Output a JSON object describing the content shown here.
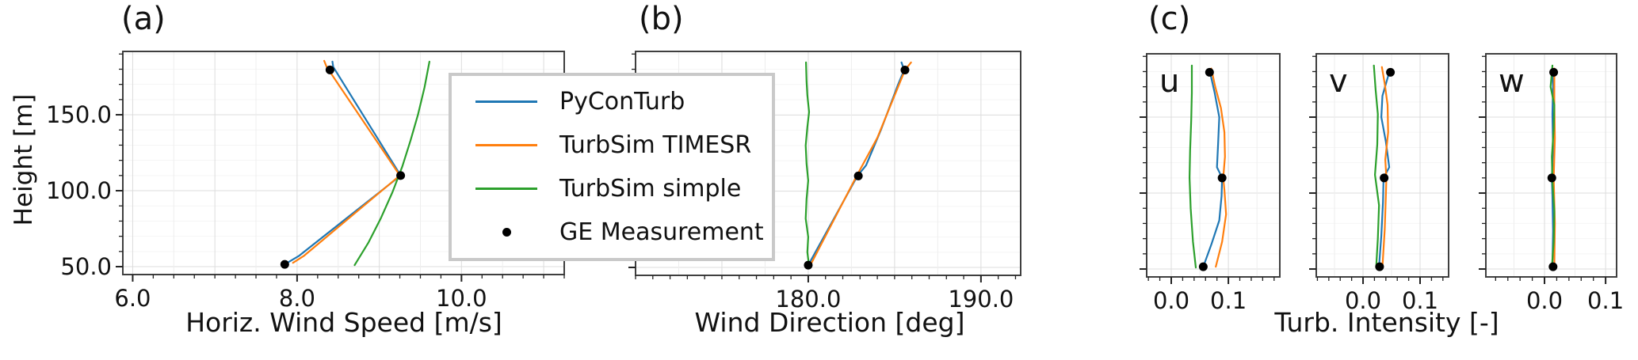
{
  "chart_data": [
    {
      "id": "a",
      "type": "line",
      "title": "(a)",
      "xlabel": "Horiz. Wind Speed [m/s]",
      "ylabel": "Height [m]",
      "xlim": [
        5.88,
        11.25
      ],
      "ylim": [
        44.8,
        191.7
      ],
      "xticks": [
        6.0,
        8.0,
        10.0
      ],
      "xtick_labels": [
        "6.0",
        "8.0",
        "10.0"
      ],
      "yticks": [
        50,
        100,
        150
      ],
      "ytick_labels": [
        "50.0",
        "100.0",
        "150.0"
      ],
      "x_minor_step": 0.25,
      "x_grid_step": 0.5,
      "x_grid_major_step": 1.0,
      "y_minor_step": 10,
      "grid": true,
      "series": [
        {
          "name": "PyConTurb",
          "color": "#1f77b4",
          "points": [
            [
              7.85,
              51.5
            ],
            [
              8.02,
              57
            ],
            [
              9.26,
              110
            ],
            [
              8.44,
              181.5
            ],
            [
              8.43,
              185
            ]
          ]
        },
        {
          "name": "TurbSim TIMESR",
          "color": "#ff7f0e",
          "points": [
            [
              7.95,
              52.5
            ],
            [
              8.08,
              57
            ],
            [
              9.25,
              110
            ],
            [
              8.36,
              181.5
            ],
            [
              8.33,
              185.5
            ]
          ]
        },
        {
          "name": "TurbSim simple",
          "color": "#2ca02c",
          "points": [
            [
              8.7,
              51
            ],
            [
              8.87,
              66
            ],
            [
              9.02,
              82
            ],
            [
              9.16,
              99
            ],
            [
              9.28,
              116
            ],
            [
              9.38,
              133
            ],
            [
              9.47,
              150
            ],
            [
              9.55,
              168
            ],
            [
              9.61,
              185
            ]
          ]
        },
        {
          "name": "GE Measurement",
          "color": "#000000",
          "marker": "dot",
          "points": [
            [
              7.85,
              51.5
            ],
            [
              9.26,
              110
            ],
            [
              8.4,
              179.5
            ]
          ]
        }
      ]
    },
    {
      "id": "b",
      "type": "line",
      "title": "(b)",
      "xlabel": "Wind Direction [deg]",
      "xlim": [
        170.0,
        192.3
      ],
      "ylim": [
        44.8,
        191.7
      ],
      "xticks": [
        180.0,
        190.0
      ],
      "xtick_labels": [
        "180.0",
        "190.0"
      ],
      "x_minor_step": 1.0,
      "x_grid_step": 2.5,
      "x_grid_major_step": 5.0,
      "y_minor_step": 10,
      "grid": true,
      "series": [
        {
          "name": "PyConTurb",
          "color": "#1f77b4",
          "points": [
            [
              180.0,
              51.5
            ],
            [
              181.0,
              72
            ],
            [
              182.85,
              110
            ],
            [
              183.35,
              117
            ],
            [
              184.2,
              140
            ],
            [
              185.2,
              170
            ],
            [
              185.55,
              179.5
            ],
            [
              185.4,
              184.5
            ]
          ]
        },
        {
          "name": "TurbSim TIMESR",
          "color": "#ff7f0e",
          "points": [
            [
              180.12,
              51.5
            ],
            [
              182.8,
              110
            ],
            [
              184.0,
              135
            ],
            [
              185.6,
              179.5
            ],
            [
              185.95,
              184.5
            ]
          ]
        },
        {
          "name": "TurbSim simple",
          "color": "#2ca02c",
          "points": [
            [
              180.05,
              51
            ],
            [
              179.95,
              60
            ],
            [
              180.0,
              70
            ],
            [
              179.85,
              82
            ],
            [
              179.9,
              95
            ],
            [
              180.0,
              107
            ],
            [
              179.9,
              118
            ],
            [
              179.85,
              130
            ],
            [
              179.95,
              142
            ],
            [
              180.05,
              152
            ],
            [
              179.95,
              163
            ],
            [
              179.9,
              172
            ],
            [
              179.87,
              184.5
            ]
          ]
        },
        {
          "name": "GE Measurement",
          "color": "#000000",
          "marker": "dot",
          "points": [
            [
              180.0,
              51.5
            ],
            [
              182.9,
              110
            ],
            [
              185.6,
              179.5
            ]
          ]
        }
      ]
    },
    {
      "id": "c",
      "type": "line",
      "title": "(c)",
      "xlabel": "Turb. Intensity [-]",
      "ylim": [
        44.8,
        191.7
      ],
      "yticks": [
        50,
        100,
        150
      ],
      "y_minor_step": 10,
      "grid": true,
      "subpanels": [
        {
          "label": "u",
          "xlim": [
            -0.043,
            0.19
          ],
          "xticks": [
            0.0,
            0.1
          ],
          "xtick_labels": [
            "0.0",
            "0.1"
          ],
          "x_minor_step": 0.02,
          "x_grid_step": 0.05,
          "x_grid_major_step": 0.1,
          "series": [
            {
              "name": "PyConTurb",
              "color": "#1f77b4",
              "points": [
                [
                  0.056,
                  51.5
                ],
                [
                  0.07,
                  66
                ],
                [
                  0.084,
                  82
                ],
                [
                  0.088,
                  98
                ],
                [
                  0.089,
                  110
                ],
                [
                  0.08,
                  117
                ],
                [
                  0.082,
                  132
                ],
                [
                  0.084,
                  150
                ],
                [
                  0.076,
                  166
                ],
                [
                  0.067,
                  181
                ]
              ]
            },
            {
              "name": "TurbSim TIMESR",
              "color": "#ff7f0e",
              "points": [
                [
                  0.078,
                  51.5
                ],
                [
                  0.089,
                  68
                ],
                [
                  0.096,
                  86
                ],
                [
                  0.093,
                  102
                ],
                [
                  0.091,
                  110
                ],
                [
                  0.094,
                  124
                ],
                [
                  0.093,
                  140
                ],
                [
                  0.087,
                  156
                ],
                [
                  0.077,
                  170
                ],
                [
                  0.07,
                  182
                ]
              ]
            },
            {
              "name": "TurbSim simple",
              "color": "#2ca02c",
              "points": [
                [
                  0.043,
                  51
                ],
                [
                  0.038,
                  68
                ],
                [
                  0.034,
                  90
                ],
                [
                  0.032,
                  110
                ],
                [
                  0.033,
                  128
                ],
                [
                  0.035,
                  148
                ],
                [
                  0.036,
                  166
                ],
                [
                  0.036,
                  184
                ]
              ]
            },
            {
              "name": "GE Measurement",
              "color": "#000000",
              "marker": "dot",
              "points": [
                [
                  0.056,
                  51.5
                ],
                [
                  0.089,
                  110
                ],
                [
                  0.067,
                  179.5
                ]
              ]
            }
          ]
        },
        {
          "label": "v",
          "xlim": [
            -0.082,
            0.15
          ],
          "xticks": [
            0.0,
            0.1
          ],
          "xtick_labels": [
            "0.0",
            "0.1"
          ],
          "x_minor_step": 0.02,
          "x_grid_step": 0.05,
          "x_grid_major_step": 0.1,
          "series": [
            {
              "name": "PyConTurb",
              "color": "#1f77b4",
              "points": [
                [
                  0.028,
                  51.5
                ],
                [
                  0.032,
                  72
                ],
                [
                  0.035,
                  94
                ],
                [
                  0.036,
                  110
                ],
                [
                  0.046,
                  117
                ],
                [
                  0.04,
                  134
                ],
                [
                  0.032,
                  150
                ],
                [
                  0.034,
                  164
                ],
                [
                  0.047,
                  181
                ]
              ]
            },
            {
              "name": "TurbSim TIMESR",
              "color": "#ff7f0e",
              "points": [
                [
                  0.034,
                  51.5
                ],
                [
                  0.038,
                  76
                ],
                [
                  0.04,
                  98
                ],
                [
                  0.041,
                  110
                ],
                [
                  0.039,
                  122
                ],
                [
                  0.044,
                  140
                ],
                [
                  0.043,
                  158
                ],
                [
                  0.038,
                  172
                ],
                [
                  0.033,
                  183
                ]
              ]
            },
            {
              "name": "TurbSim simple",
              "color": "#2ca02c",
              "points": [
                [
                  0.023,
                  51
                ],
                [
                  0.026,
                  70
                ],
                [
                  0.028,
                  92
                ],
                [
                  0.021,
                  112
                ],
                [
                  0.025,
                  132
                ],
                [
                  0.026,
                  152
                ],
                [
                  0.022,
                  168
                ],
                [
                  0.019,
                  184
                ]
              ]
            },
            {
              "name": "GE Measurement",
              "color": "#000000",
              "marker": "dot",
              "points": [
                [
                  0.029,
                  51.5
                ],
                [
                  0.037,
                  110
                ],
                [
                  0.048,
                  179.5
                ]
              ]
            }
          ]
        },
        {
          "label": "w",
          "xlim": [
            -0.096,
            0.118
          ],
          "xticks": [
            0.0,
            0.1
          ],
          "xtick_labels": [
            "0.0",
            "0.1"
          ],
          "x_minor_step": 0.02,
          "x_grid_step": 0.05,
          "x_grid_major_step": 0.1,
          "series": [
            {
              "name": "PyConTurb",
              "color": "#1f77b4",
              "points": [
                [
                  0.013,
                  51.5
                ],
                [
                  0.014,
                  75
                ],
                [
                  0.013,
                  98
                ],
                [
                  0.012,
                  110
                ],
                [
                  0.014,
                  130
                ],
                [
                  0.013,
                  152
                ],
                [
                  0.014,
                  170
                ],
                [
                  0.013,
                  181
                ]
              ]
            },
            {
              "name": "TurbSim TIMESR",
              "color": "#ff7f0e",
              "points": [
                [
                  0.016,
                  51.5
                ],
                [
                  0.017,
                  80
                ],
                [
                  0.015,
                  110
                ],
                [
                  0.017,
                  136
                ],
                [
                  0.016,
                  160
                ],
                [
                  0.016,
                  182
                ]
              ]
            },
            {
              "name": "TurbSim simple",
              "color": "#2ca02c",
              "points": [
                [
                  0.012,
                  51
                ],
                [
                  0.015,
                  68
                ],
                [
                  0.016,
                  88
                ],
                [
                  0.013,
                  108
                ],
                [
                  0.012,
                  124
                ],
                [
                  0.015,
                  142
                ],
                [
                  0.016,
                  158
                ],
                [
                  0.01,
                  170
                ],
                [
                  0.013,
                  184
                ]
              ]
            },
            {
              "name": "GE Measurement",
              "color": "#000000",
              "marker": "dot",
              "points": [
                [
                  0.014,
                  51.5
                ],
                [
                  0.012,
                  110
                ],
                [
                  0.015,
                  179.5
                ]
              ]
            }
          ]
        }
      ]
    }
  ],
  "legend": {
    "border_color": "#c9c9c9",
    "items": [
      {
        "label": "PyConTurb",
        "color": "#1f77b4",
        "marker": "line"
      },
      {
        "label": "TurbSim TIMESR",
        "color": "#ff7f0e",
        "marker": "line"
      },
      {
        "label": "TurbSim simple",
        "color": "#2ca02c",
        "marker": "line"
      },
      {
        "label": "GE Measurement",
        "color": "#000000",
        "marker": "dot"
      }
    ]
  },
  "style": {
    "spine_color": "#3f3f3f",
    "tick_color": "#222222",
    "grid_major_color": "#dcdcdc",
    "grid_minor_color": "#eeeeee",
    "grid_faint_color": "#f5f5f5"
  }
}
